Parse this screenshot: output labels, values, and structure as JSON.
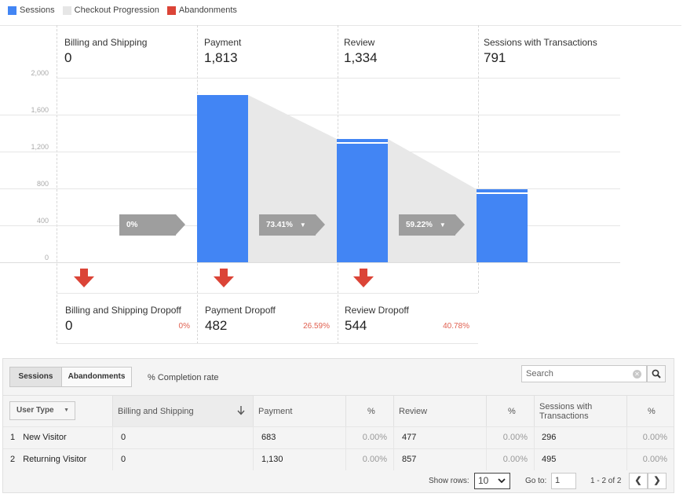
{
  "legend": [
    {
      "label": "Sessions",
      "color": "#4285f4"
    },
    {
      "label": "Checkout Progression",
      "color": "#e6e6e6"
    },
    {
      "label": "Abandonments",
      "color": "#db4437"
    }
  ],
  "funnel": {
    "y_ticks": [
      "2,000",
      "1,600",
      "1,200",
      "800",
      "400",
      "0"
    ],
    "ymax": 2000,
    "steps": [
      {
        "name": "Billing and Shipping",
        "value": "0",
        "sessions": 0
      },
      {
        "name": "Payment",
        "value": "1,813",
        "sessions": 1813
      },
      {
        "name": "Review",
        "value": "1,334",
        "sessions": 1334
      },
      {
        "name": "Sessions with Transactions",
        "value": "791",
        "sessions": 791
      }
    ],
    "progression": [
      "0%",
      "73.41%",
      "59.22%"
    ],
    "dropoffs": [
      {
        "name": "Billing and Shipping Dropoff",
        "value": "0",
        "pct": "0%"
      },
      {
        "name": "Payment Dropoff",
        "value": "482",
        "pct": "26.59%"
      },
      {
        "name": "Review Dropoff",
        "value": "544",
        "pct": "40.78%"
      }
    ]
  },
  "table": {
    "tabs": [
      "Sessions",
      "Abandonments"
    ],
    "completion_label": "% Completion rate",
    "search_placeholder": "Search",
    "dimension_label": "User Type",
    "columns": [
      "Billing and Shipping",
      "Payment",
      "%",
      "Review",
      "%",
      "Sessions with Transactions",
      "%"
    ],
    "rows": [
      {
        "num": "1",
        "type": "New Visitor",
        "billing": "0",
        "payment": "683",
        "payment_pct": "0.00%",
        "review": "477",
        "review_pct": "0.00%",
        "trans": "296",
        "trans_pct": "0.00%"
      },
      {
        "num": "2",
        "type": "Returning Visitor",
        "billing": "0",
        "payment": "1,130",
        "payment_pct": "0.00%",
        "review": "857",
        "review_pct": "0.00%",
        "trans": "495",
        "trans_pct": "0.00%"
      }
    ],
    "footer": {
      "show_rows_label": "Show rows:",
      "show_rows_value": "10",
      "goto_label": "Go to:",
      "goto_value": "1",
      "range": "1 - 2 of 2"
    }
  }
}
